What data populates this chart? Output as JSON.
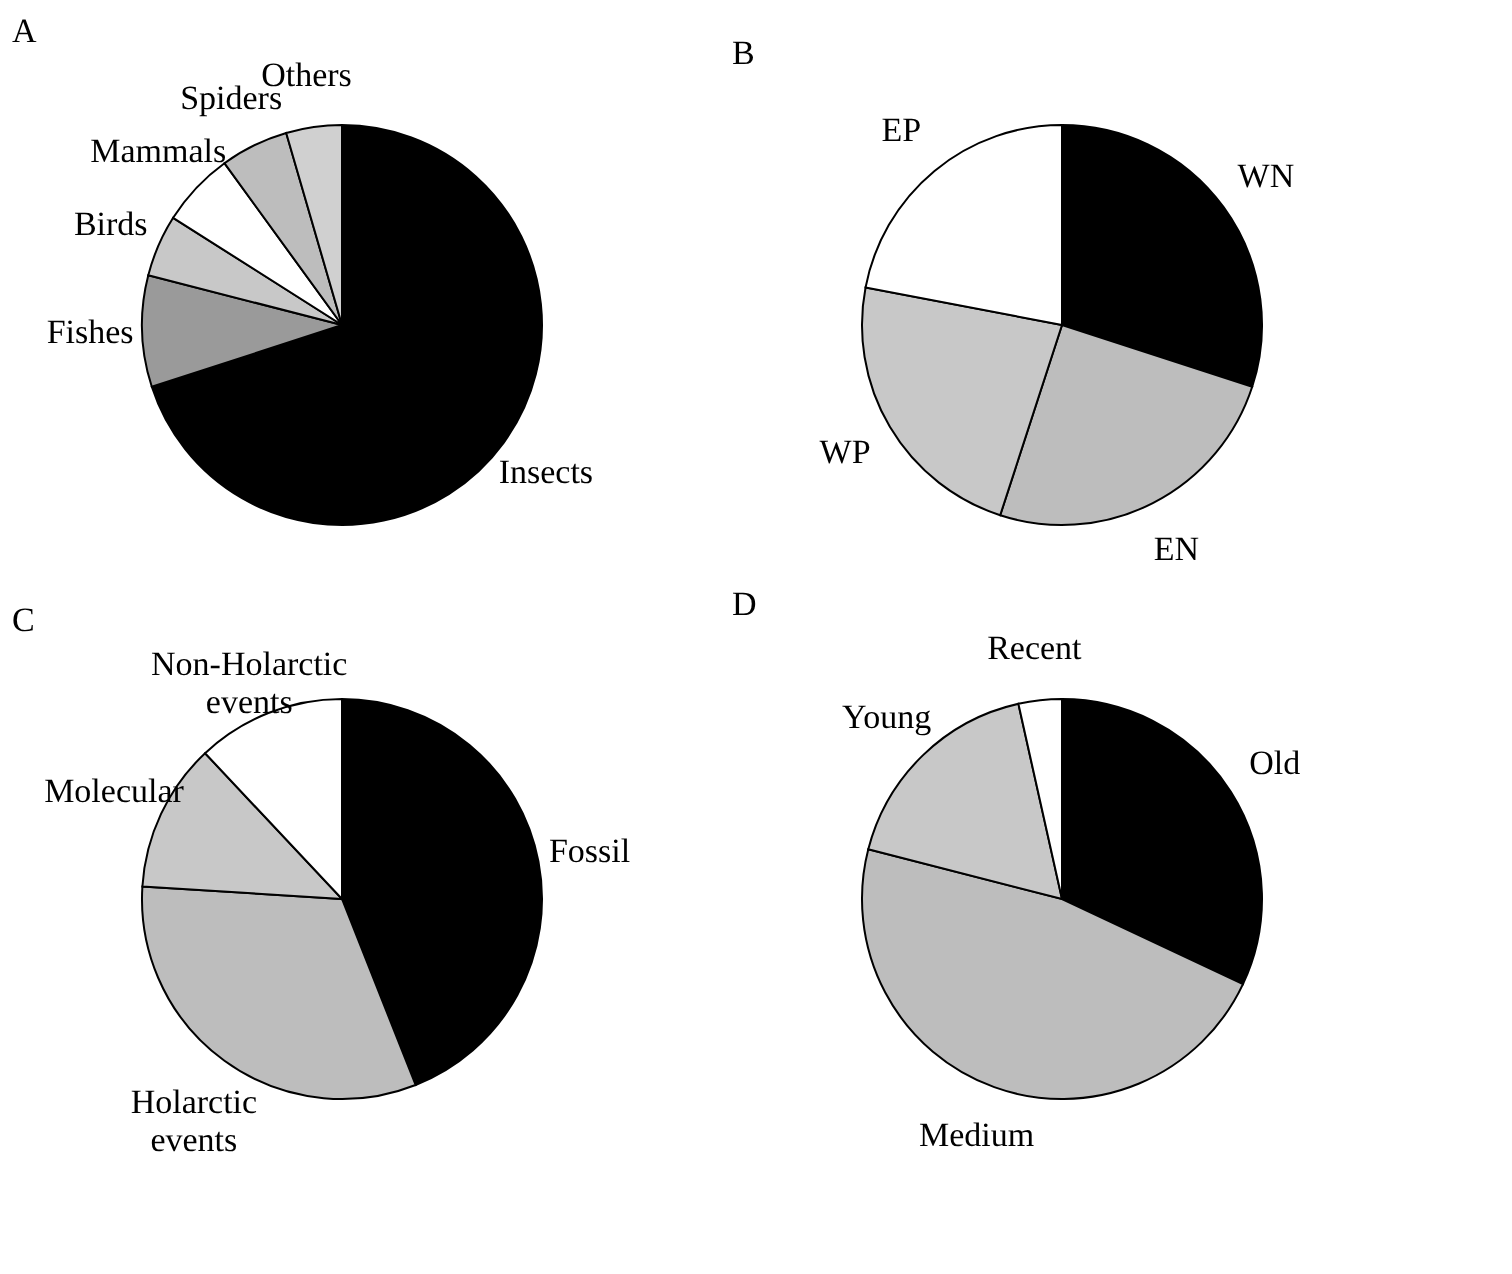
{
  "chart_data": [
    {
      "type": "pie",
      "title": "A",
      "categories": [
        "Insects",
        "Fishes",
        "Birds",
        "Mammals",
        "Spiders",
        "Others"
      ],
      "values": [
        70,
        9,
        5,
        6,
        5.5,
        4.5
      ],
      "colors": [
        "#000000",
        "#9a9a9a",
        "#c8c8c8",
        "#ffffff",
        "#bdbdbd",
        "#d0d0d0"
      ],
      "legend": false
    },
    {
      "type": "pie",
      "title": "B",
      "categories": [
        "WN",
        "EN",
        "WP",
        "EP"
      ],
      "values": [
        30,
        25,
        23,
        22
      ],
      "colors": [
        "#000000",
        "#bdbdbd",
        "#c8c8c8",
        "#ffffff"
      ],
      "legend": false
    },
    {
      "type": "pie",
      "title": "C",
      "categories": [
        "Fossil",
        "Holarctic events",
        "Molecular",
        "Non-Holarctic events"
      ],
      "values": [
        44,
        32,
        12,
        12
      ],
      "colors": [
        "#000000",
        "#bdbdbd",
        "#c8c8c8",
        "#ffffff"
      ],
      "legend": false
    },
    {
      "type": "pie",
      "title": "D",
      "categories": [
        "Old",
        "Medium",
        "Young",
        "Recent"
      ],
      "values": [
        32,
        47,
        17.5,
        3.5
      ],
      "colors": [
        "#000000",
        "#bdbdbd",
        "#c8c8c8",
        "#ffffff"
      ],
      "legend": false
    }
  ]
}
